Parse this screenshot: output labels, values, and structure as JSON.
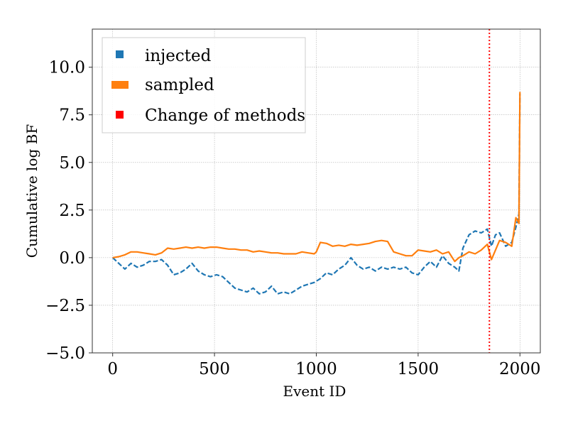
{
  "chart_data": {
    "type": "line",
    "title": "",
    "xlabel": "Event ID",
    "ylabel": "Cumulative log BF",
    "xlim": [
      -100,
      2100
    ],
    "ylim": [
      -5.0,
      12.0
    ],
    "xticks": [
      0,
      500,
      1000,
      1500,
      2000
    ],
    "xtick_labels": [
      "0",
      "500",
      "1000",
      "1500",
      "2000"
    ],
    "yticks": [
      -5.0,
      -2.5,
      0.0,
      2.5,
      5.0,
      7.5,
      10.0
    ],
    "ytick_labels": [
      "−5.0",
      "−2.5",
      "0.0",
      "2.5",
      "5.0",
      "7.5",
      "10.0"
    ],
    "grid": true,
    "legend_position": "top-left",
    "series": [
      {
        "name": "injected",
        "color": "#1f77b4",
        "line_style": "dashed",
        "x": [
          0,
          30,
          60,
          90,
          120,
          150,
          180,
          210,
          240,
          270,
          300,
          330,
          360,
          390,
          420,
          450,
          480,
          510,
          540,
          570,
          600,
          630,
          660,
          690,
          720,
          750,
          780,
          810,
          840,
          870,
          900,
          930,
          960,
          990,
          1020,
          1050,
          1080,
          1110,
          1140,
          1170,
          1200,
          1230,
          1260,
          1290,
          1320,
          1350,
          1380,
          1410,
          1440,
          1470,
          1500,
          1530,
          1560,
          1590,
          1620,
          1650,
          1680,
          1700,
          1720,
          1750,
          1780,
          1810,
          1840,
          1860,
          1880,
          1900,
          1930,
          1960,
          1980,
          1995,
          2000
        ],
        "y": [
          0.0,
          -0.3,
          -0.6,
          -0.3,
          -0.5,
          -0.4,
          -0.2,
          -0.2,
          -0.1,
          -0.4,
          -0.9,
          -0.8,
          -0.6,
          -0.3,
          -0.7,
          -0.9,
          -1.0,
          -0.9,
          -1.0,
          -1.3,
          -1.6,
          -1.7,
          -1.8,
          -1.6,
          -1.9,
          -1.8,
          -1.5,
          -1.9,
          -1.8,
          -1.9,
          -1.7,
          -1.5,
          -1.4,
          -1.3,
          -1.1,
          -0.8,
          -0.9,
          -0.6,
          -0.4,
          0.0,
          -0.4,
          -0.6,
          -0.5,
          -0.7,
          -0.5,
          -0.6,
          -0.5,
          -0.6,
          -0.5,
          -0.8,
          -0.9,
          -0.5,
          -0.2,
          -0.5,
          0.1,
          -0.3,
          -0.5,
          -0.7,
          0.5,
          1.2,
          1.4,
          1.3,
          1.5,
          0.6,
          1.2,
          1.3,
          0.6,
          0.8,
          1.6,
          2.3,
          8.6
        ]
      },
      {
        "name": "sampled",
        "color": "#ff7f0e",
        "line_style": "solid",
        "x": [
          0,
          30,
          60,
          90,
          120,
          150,
          180,
          210,
          240,
          270,
          300,
          330,
          360,
          390,
          420,
          450,
          480,
          510,
          540,
          570,
          600,
          630,
          660,
          690,
          720,
          750,
          780,
          810,
          840,
          870,
          900,
          930,
          960,
          990,
          1000,
          1020,
          1050,
          1080,
          1110,
          1140,
          1170,
          1200,
          1230,
          1260,
          1290,
          1320,
          1350,
          1380,
          1410,
          1440,
          1470,
          1500,
          1530,
          1560,
          1590,
          1620,
          1650,
          1680,
          1700,
          1720,
          1750,
          1780,
          1810,
          1840,
          1850,
          1860,
          1880,
          1900,
          1930,
          1960,
          1980,
          1995,
          2000
        ],
        "y": [
          0.0,
          0.05,
          0.15,
          0.3,
          0.3,
          0.25,
          0.2,
          0.15,
          0.25,
          0.5,
          0.45,
          0.5,
          0.55,
          0.5,
          0.55,
          0.5,
          0.55,
          0.55,
          0.5,
          0.45,
          0.45,
          0.4,
          0.4,
          0.3,
          0.35,
          0.3,
          0.25,
          0.25,
          0.2,
          0.2,
          0.2,
          0.3,
          0.25,
          0.2,
          0.3,
          0.8,
          0.75,
          0.6,
          0.65,
          0.6,
          0.7,
          0.65,
          0.7,
          0.75,
          0.85,
          0.9,
          0.85,
          0.3,
          0.2,
          0.1,
          0.1,
          0.4,
          0.35,
          0.3,
          0.4,
          0.2,
          0.3,
          -0.2,
          0.0,
          0.1,
          0.3,
          0.2,
          0.4,
          0.7,
          0.3,
          -0.1,
          0.4,
          0.9,
          0.8,
          0.6,
          2.1,
          1.8,
          8.7
        ]
      }
    ],
    "vline": {
      "x": 1850,
      "name": "Change of methods",
      "color": "#ff0000",
      "line_style": "dotted"
    }
  }
}
